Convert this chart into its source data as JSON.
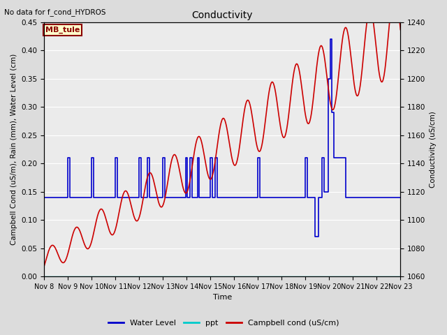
{
  "title": "Conductivity",
  "top_left_text": "No data for f_cond_HYDROS",
  "annotation_box": "MB_tule",
  "xlabel": "Time",
  "ylabel_left": "Campbell Cond (uS/m), Rain (mm), Water Level (cm)",
  "ylabel_right": "Conductivity (uS/cm)",
  "ylim_left": [
    0.0,
    0.45
  ],
  "ylim_right": [
    1060,
    1240
  ],
  "yticks_left": [
    0.0,
    0.05,
    0.1,
    0.15,
    0.2,
    0.25,
    0.3,
    0.35,
    0.4,
    0.45
  ],
  "yticks_right": [
    1060,
    1080,
    1100,
    1120,
    1140,
    1160,
    1180,
    1200,
    1220,
    1240
  ],
  "xtick_labels": [
    "Nov 8",
    "Nov 9",
    "Nov 10",
    "Nov 11",
    "Nov 12",
    "Nov 13",
    "Nov 14",
    "Nov 15",
    "Nov 16",
    "Nov 17",
    "Nov 18",
    "Nov 19",
    "Nov 20",
    "Nov 21",
    "Nov 22",
    "Nov 23"
  ],
  "bg_color": "#dcdcdc",
  "plot_bg_color": "#ebebeb",
  "water_level_color": "#0000cc",
  "ppt_color": "#00cccc",
  "campbell_color": "#cc0000",
  "water_level_linewidth": 1.2,
  "ppt_linewidth": 1.0,
  "campbell_linewidth": 1.2,
  "legend_labels": [
    "Water Level",
    "ppt",
    "Campbell cond (uS/cm)"
  ]
}
